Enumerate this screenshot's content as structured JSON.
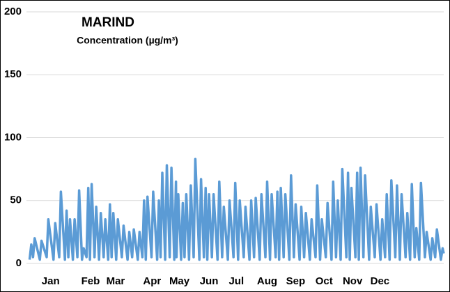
{
  "chart_data": {
    "type": "line",
    "title": "MARIND",
    "subtitle": "Concentration (µg/m³)",
    "x": [
      1.5,
      3,
      4.5,
      6,
      10.5,
      12,
      16.5,
      18,
      22.5,
      24,
      27.5,
      29,
      32.5,
      34,
      35.5,
      37,
      39.5,
      41,
      43.5,
      45,
      47.5,
      49,
      51.5,
      53,
      54.5,
      56,
      58.5,
      60,
      62.5,
      64,
      66.5,
      68,
      70.5,
      72,
      73.5,
      75,
      77.5,
      79,
      82.5,
      84,
      87.5,
      89,
      91.5,
      93,
      96.5,
      98,
      100.5,
      102,
      103.5,
      105,
      108.5,
      110,
      113.5,
      115,
      116.5,
      118,
      120.5,
      122,
      124.5,
      126,
      128.5,
      130,
      130.5,
      132,
      134.5,
      136,
      137.5,
      139,
      141.5,
      143,
      145.5,
      147,
      150.5,
      152,
      154.5,
      156,
      157.5,
      159,
      161.5,
      163,
      166.5,
      168,
      170.5,
      172,
      175.5,
      177,
      180.5,
      182,
      184.5,
      186,
      189.5,
      191,
      194.5,
      196,
      198.5,
      200,
      203.5,
      205,
      208.5,
      210,
      212.5,
      214,
      217.5,
      219,
      220.5,
      222,
      224.5,
      226,
      229.5,
      231,
      233.5,
      235,
      238.5,
      240,
      242.5,
      244,
      247.5,
      249,
      252.5,
      254,
      256.5,
      258,
      261.5,
      263,
      266.5,
      268,
      270.5,
      272,
      274.5,
      276,
      279.5,
      281,
      282.5,
      284,
      287.5,
      289,
      290.5,
      292,
      294.5,
      296,
      299.5,
      301,
      304.5,
      306,
      309.5,
      311,
      313.5,
      315,
      317.5,
      319,
      322.5,
      324,
      326.5,
      328,
      331.5,
      333,
      335.5,
      337,
      339.5,
      341,
      343.5,
      345,
      348.5,
      350,
      353.5,
      355,
      357.5,
      359,
      362.5,
      364,
      365
    ],
    "series": [
      {
        "color": "#5b9bd5",
        "values": [
          3,
          15,
          5,
          20,
          3,
          18,
          5,
          35,
          3,
          32,
          5,
          57,
          3,
          42,
          5,
          35,
          3,
          35,
          5,
          58,
          3,
          12,
          5,
          60,
          3,
          63,
          5,
          45,
          3,
          40,
          5,
          35,
          3,
          47,
          5,
          40,
          3,
          35,
          5,
          30,
          3,
          25,
          5,
          27,
          3,
          25,
          5,
          50,
          3,
          53,
          5,
          57,
          3,
          50,
          5,
          72,
          3,
          78,
          5,
          76,
          3,
          65,
          5,
          55,
          3,
          48,
          5,
          55,
          3,
          62,
          5,
          83,
          3,
          67,
          5,
          60,
          3,
          55,
          5,
          55,
          3,
          65,
          5,
          45,
          3,
          50,
          5,
          64,
          3,
          50,
          5,
          45,
          3,
          50,
          5,
          52,
          3,
          55,
          5,
          65,
          3,
          55,
          5,
          57,
          3,
          60,
          5,
          55,
          3,
          70,
          5,
          47,
          3,
          45,
          5,
          40,
          3,
          35,
          5,
          62,
          3,
          35,
          5,
          48,
          3,
          65,
          5,
          50,
          3,
          75,
          5,
          72,
          3,
          60,
          5,
          72,
          3,
          76,
          5,
          70,
          3,
          45,
          5,
          47,
          3,
          35,
          5,
          55,
          3,
          66,
          5,
          62,
          3,
          55,
          5,
          40,
          3,
          63,
          5,
          28,
          3,
          64,
          5,
          25,
          3,
          20,
          5,
          27,
          3,
          12,
          8
        ]
      }
    ],
    "xlim": [
      0,
      365
    ],
    "xticks": [
      {
        "value": 20,
        "label": "Jan"
      },
      {
        "value": 55,
        "label": "Feb"
      },
      {
        "value": 77,
        "label": "Mar"
      },
      {
        "value": 109,
        "label": "Apr"
      },
      {
        "value": 133,
        "label": "May"
      },
      {
        "value": 159,
        "label": "Jun"
      },
      {
        "value": 183,
        "label": "Jul"
      },
      {
        "value": 210,
        "label": "Aug"
      },
      {
        "value": 235,
        "label": "Sep"
      },
      {
        "value": 260,
        "label": "Oct"
      },
      {
        "value": 285,
        "label": "Nov"
      },
      {
        "value": 309,
        "label": "Dec"
      }
    ],
    "ylim": [
      0,
      200
    ],
    "yticks": [
      0,
      50,
      100,
      150,
      200
    ],
    "grid": true
  }
}
